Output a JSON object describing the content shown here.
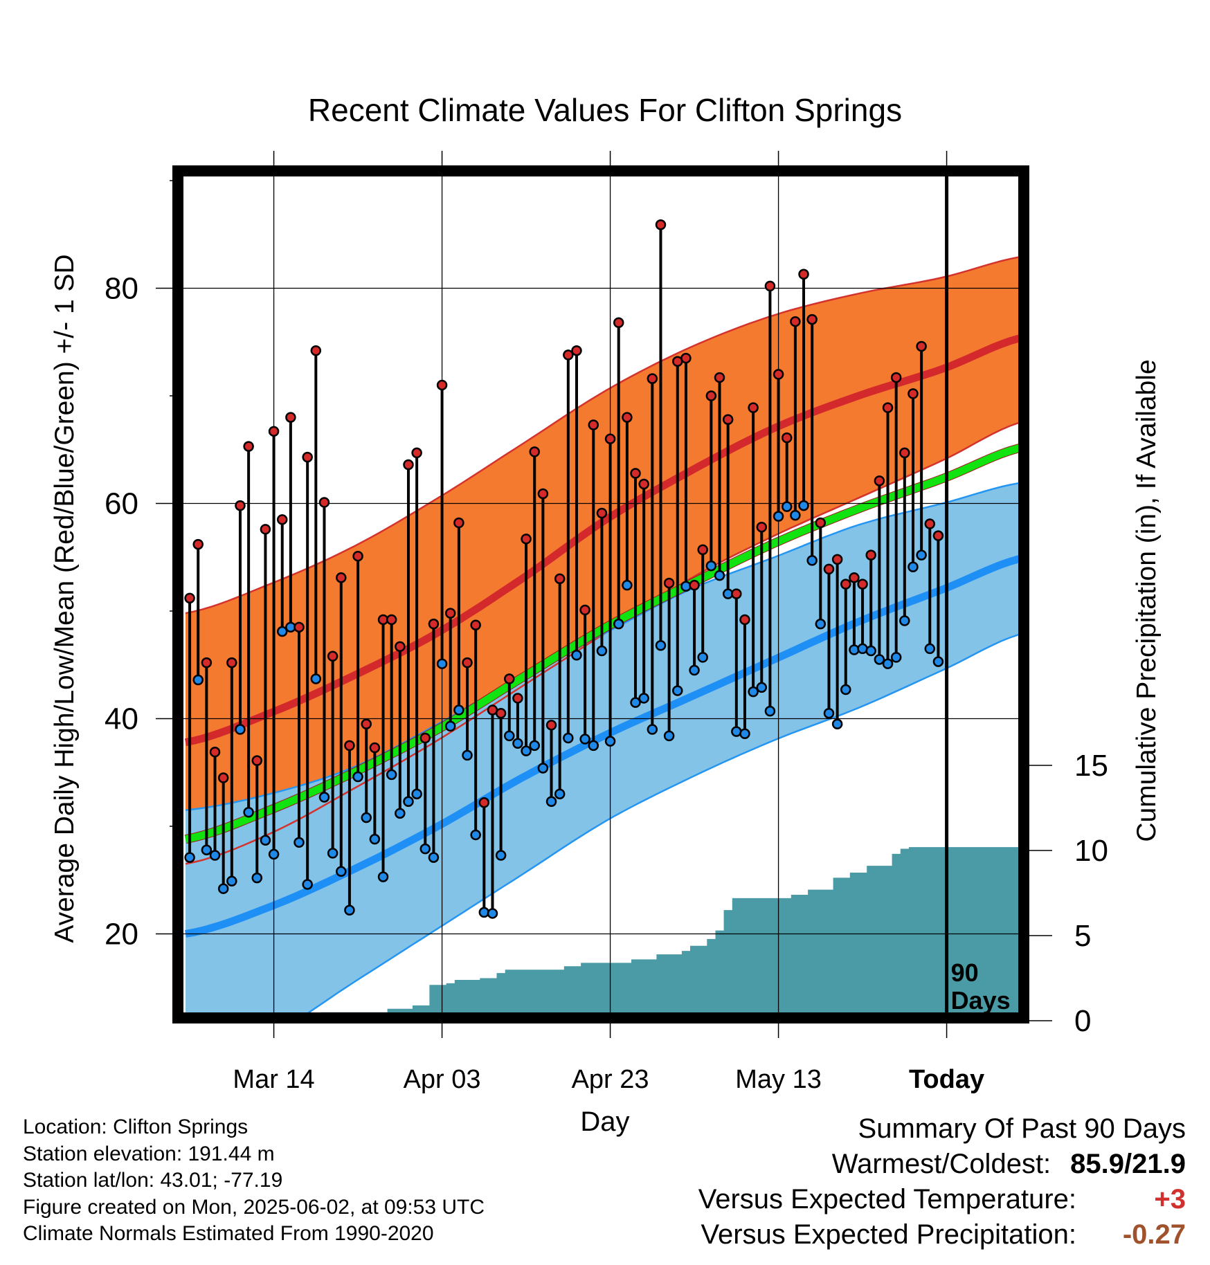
{
  "chart_data": {
    "type": "line",
    "title": "Recent Climate Values For Clifton Springs",
    "xlabel": "Day",
    "ylabel": "Average Daily High/Low/Mean (Red/Blue/Green) +/- 1 SD",
    "y2label": "Cumulative Precipitation (in), If Available",
    "ylim": [
      12,
      90
    ],
    "y2lim": [
      0,
      30
    ],
    "xlim": [
      0,
      100
    ],
    "x_ticks": [
      {
        "day": 10.5,
        "label": "Mar 14"
      },
      {
        "day": 30.5,
        "label": "Apr 03"
      },
      {
        "day": 50.5,
        "label": "Apr 23"
      },
      {
        "day": 70.5,
        "label": "May 13"
      },
      {
        "day": 90.5,
        "label": "Today"
      }
    ],
    "y_ticks": [
      20,
      40,
      60,
      80
    ],
    "y_minor_ticks": [
      30,
      50,
      70,
      90
    ],
    "y2_ticks": [
      0,
      5,
      10,
      15
    ],
    "today_day": 90.5,
    "today_label": [
      "90",
      "Days"
    ],
    "grid": true,
    "colors": {
      "high_band": "#f47a30",
      "high_band_edge": "#d3322d",
      "high_mean": "#d3282c",
      "low_band": "#84c3e8",
      "low_band_edge": "#2595f2",
      "low_mean": "#1e8ff5",
      "mean_line": "#11e311",
      "mean_line_dark": "#a01818",
      "precip_fill": "#4a9ba6",
      "high_marker": "#d42a2a",
      "low_marker": "#2088e6"
    },
    "normals": {
      "days": [
        0,
        10,
        20,
        30,
        40,
        50,
        60,
        70,
        80,
        90,
        100
      ],
      "high_mean": [
        37.8,
        40.5,
        44.0,
        48.0,
        53.0,
        58.5,
        63.0,
        67.0,
        70.0,
        72.5,
        75.5
      ],
      "high_upper": [
        49.8,
        52.5,
        56.0,
        60.5,
        65.5,
        70.5,
        74.5,
        77.5,
        79.5,
        81.0,
        83.0
      ],
      "high_lower": [
        26.5,
        29.3,
        33.5,
        38.0,
        43.0,
        48.0,
        53.0,
        57.0,
        60.5,
        64.0,
        67.7
      ],
      "low_mean": [
        20.0,
        22.5,
        26.0,
        30.0,
        34.5,
        38.5,
        42.0,
        45.5,
        49.0,
        52.0,
        55.0
      ],
      "low_upper": [
        31.5,
        33.0,
        35.5,
        39.5,
        44.0,
        48.0,
        52.0,
        55.0,
        58.0,
        60.0,
        62.0
      ],
      "low_lower": [
        7.5,
        10.5,
        15.5,
        20.5,
        25.5,
        30.5,
        34.5,
        38.0,
        41.0,
        44.5,
        48.0
      ],
      "mean": [
        28.8,
        31.5,
        35.0,
        39.0,
        43.8,
        48.5,
        52.5,
        56.3,
        59.5,
        62.3,
        65.3
      ]
    },
    "series": [
      {
        "name": "High",
        "values": [
          51.2,
          56.2,
          45.2,
          36.9,
          34.5,
          45.2,
          59.8,
          65.3,
          36.1,
          57.6,
          66.7,
          58.5,
          68.0,
          48.5,
          64.3,
          74.2,
          60.1,
          45.8,
          53.1,
          37.5,
          55.1,
          39.5,
          37.3,
          49.2,
          49.2,
          46.7,
          63.6,
          64.7,
          38.2,
          48.8,
          71.0,
          49.8,
          58.2,
          45.2,
          48.7,
          32.2,
          40.8,
          40.5,
          43.7,
          41.9,
          56.7,
          64.8,
          60.9,
          39.4,
          53.0,
          73.8,
          74.2,
          50.1,
          67.3,
          59.1,
          66.0,
          76.8,
          68.0,
          62.8,
          61.8,
          71.6,
          85.9,
          52.6,
          73.2,
          73.5,
          52.4,
          55.7,
          70.0,
          71.7,
          67.8,
          51.6,
          49.2,
          68.9,
          57.8,
          80.2,
          72.0,
          66.1,
          76.9,
          81.3,
          77.1,
          58.2,
          53.9,
          54.8,
          52.5,
          53.1,
          52.5,
          55.2,
          62.1,
          68.9,
          71.7,
          64.7,
          70.2,
          74.6,
          58.1,
          57.0
        ]
      },
      {
        "name": "Low",
        "values": [
          27.1,
          43.6,
          27.8,
          27.3,
          24.2,
          24.9,
          39.0,
          31.3,
          25.2,
          28.7,
          27.4,
          48.1,
          48.5,
          28.5,
          24.6,
          43.7,
          32.7,
          27.5,
          25.8,
          22.2,
          34.6,
          30.8,
          28.8,
          25.3,
          34.8,
          31.2,
          32.3,
          33.0,
          27.9,
          27.1,
          45.1,
          39.3,
          40.8,
          36.6,
          29.2,
          22.0,
          21.9,
          27.3,
          38.4,
          37.7,
          37.0,
          37.5,
          35.4,
          32.3,
          33.0,
          38.2,
          45.9,
          38.1,
          37.5,
          46.3,
          37.9,
          48.8,
          52.4,
          41.5,
          41.9,
          39.0,
          46.8,
          38.4,
          42.6,
          52.3,
          44.5,
          45.7,
          54.2,
          53.3,
          51.6,
          38.8,
          38.6,
          42.5,
          42.9,
          40.7,
          58.8,
          59.7,
          58.9,
          59.8,
          54.7,
          48.8,
          40.5,
          39.5,
          42.7,
          46.4,
          46.5,
          46.3,
          45.5,
          45.1,
          45.7,
          49.1,
          54.1,
          55.2,
          46.5,
          45.3
        ]
      },
      {
        "name": "Cumulative Precipitation",
        "steps": [
          [
            0,
            0
          ],
          [
            12,
            0
          ],
          [
            12,
            0.2
          ],
          [
            16,
            0.2
          ],
          [
            16,
            0.5
          ],
          [
            24,
            0.5
          ],
          [
            24,
            0.7
          ],
          [
            27,
            0.7
          ],
          [
            27,
            0.9
          ],
          [
            29,
            0.9
          ],
          [
            29,
            2.1
          ],
          [
            31,
            2.1
          ],
          [
            31,
            2.2
          ],
          [
            32,
            2.2
          ],
          [
            32,
            2.4
          ],
          [
            35,
            2.4
          ],
          [
            35,
            2.5
          ],
          [
            37,
            2.5
          ],
          [
            37,
            2.8
          ],
          [
            38,
            2.8
          ],
          [
            38,
            3.0
          ],
          [
            45,
            3.0
          ],
          [
            45,
            3.2
          ],
          [
            47,
            3.2
          ],
          [
            47,
            3.4
          ],
          [
            53,
            3.4
          ],
          [
            53,
            3.6
          ],
          [
            56,
            3.6
          ],
          [
            56,
            3.9
          ],
          [
            59,
            3.9
          ],
          [
            59,
            4.1
          ],
          [
            60,
            4.1
          ],
          [
            60,
            4.4
          ],
          [
            62,
            4.4
          ],
          [
            62,
            4.8
          ],
          [
            63,
            4.8
          ],
          [
            63,
            5.3
          ],
          [
            64,
            5.3
          ],
          [
            64,
            6.5
          ],
          [
            65,
            6.5
          ],
          [
            65,
            7.2
          ],
          [
            72,
            7.2
          ],
          [
            72,
            7.4
          ],
          [
            74,
            7.4
          ],
          [
            74,
            7.7
          ],
          [
            77,
            7.7
          ],
          [
            77,
            8.4
          ],
          [
            79,
            8.4
          ],
          [
            79,
            8.7
          ],
          [
            81,
            8.7
          ],
          [
            81,
            9.1
          ],
          [
            84,
            9.1
          ],
          [
            84,
            9.8
          ],
          [
            85,
            9.8
          ],
          [
            85,
            10.1
          ],
          [
            86,
            10.1
          ],
          [
            86,
            10.2
          ],
          [
            100,
            10.2
          ]
        ]
      }
    ]
  },
  "footer": {
    "location": "Location: Clifton Springs",
    "elevation": "Station elevation: 191.44 m",
    "latlon": "Station lat/lon: 43.01; -77.19",
    "created": "Figure created on Mon, 2025-06-02, at 09:53 UTC",
    "normals": "Climate Normals Estimated From 1990-2020"
  },
  "summary": {
    "title": "Summary Of Past 90 Days",
    "warmest_label": "Warmest/Coldest:",
    "warmest_value": "85.9/21.9",
    "temp_label": "Versus Expected Temperature:",
    "temp_value": "+3",
    "precip_label": "Versus Expected Precipitation:",
    "precip_value": "-0.27"
  }
}
